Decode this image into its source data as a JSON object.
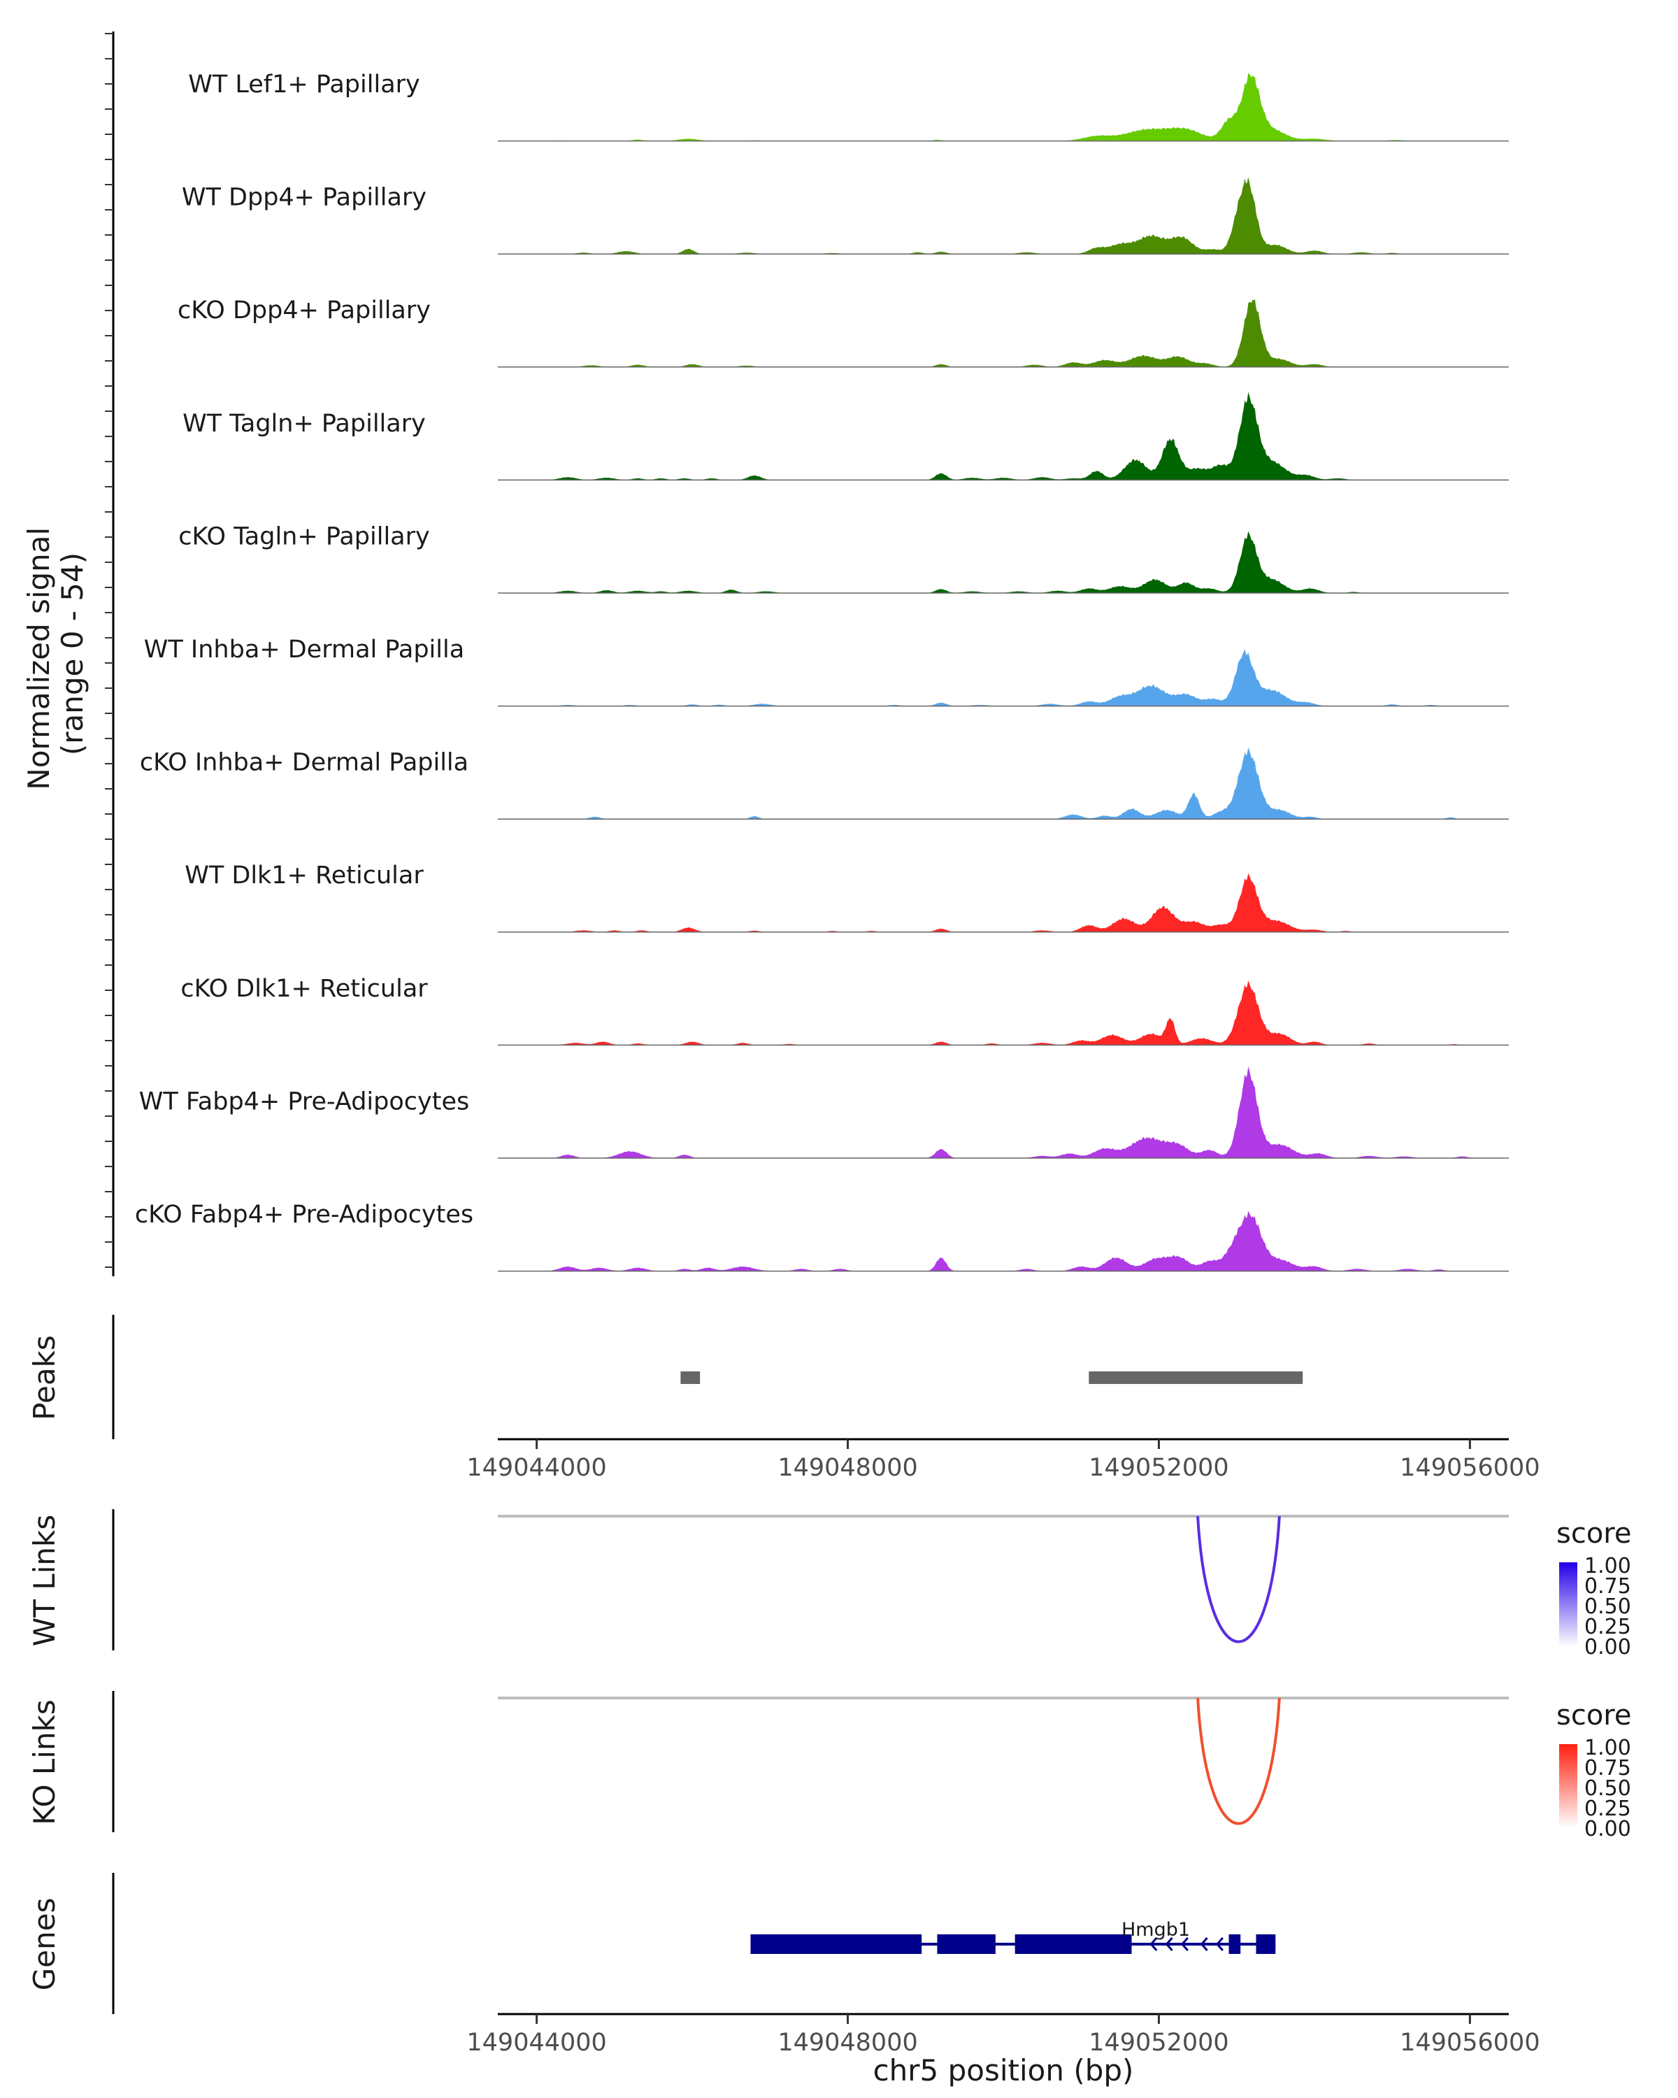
{
  "chart_data": {
    "type": "area",
    "region": "chr5",
    "xlim": [
      149043500,
      149056500
    ],
    "signal_ylabel": "Normalized signal",
    "signal_range": "(range 0 - 54)",
    "signal_ylim": [
      0,
      54
    ],
    "tracks": [
      {
        "name": "WT Lef1+ Papillary",
        "color": "#66cc00",
        "peaks": [
          [
            149044300,
            0.5,
            80
          ],
          [
            149045300,
            1.2,
            100
          ],
          [
            149045950,
            2.0,
            180
          ],
          [
            149046800,
            0.6,
            100
          ],
          [
            149049150,
            1.0,
            80
          ],
          [
            149051200,
            4.0,
            250
          ],
          [
            149051850,
            10.0,
            400
          ],
          [
            149052350,
            9.0,
            300
          ],
          [
            149052900,
            17.0,
            140
          ],
          [
            149053180,
            56.0,
            160
          ],
          [
            149053450,
            10.0,
            250
          ],
          [
            149054000,
            2.0,
            200
          ],
          [
            149055050,
            0.8,
            150
          ],
          [
            149055800,
            0.4,
            100
          ]
        ]
      },
      {
        "name": "WT Dpp4+ Papillary",
        "color": "#4d8c00",
        "peaks": [
          [
            149044600,
            1.2,
            120
          ],
          [
            149045150,
            2.5,
            150
          ],
          [
            149045950,
            4.5,
            100
          ],
          [
            149046700,
            1.2,
            150
          ],
          [
            149047800,
            0.8,
            150
          ],
          [
            149048900,
            1.5,
            100
          ],
          [
            149049200,
            2.0,
            100
          ],
          [
            149050300,
            1.5,
            150
          ],
          [
            149051200,
            5.0,
            150
          ],
          [
            149051500,
            8.0,
            200
          ],
          [
            149051900,
            16.0,
            250
          ],
          [
            149052300,
            14.0,
            200
          ],
          [
            149052700,
            4.0,
            150
          ],
          [
            149053000,
            20.0,
            120
          ],
          [
            149053150,
            60.0,
            140
          ],
          [
            149053500,
            8.0,
            200
          ],
          [
            149054000,
            3.0,
            150
          ],
          [
            149054600,
            1.5,
            150
          ],
          [
            149055000,
            1.0,
            100
          ]
        ]
      },
      {
        "name": "cKO Dpp4+ Papillary",
        "color": "#4d8c00",
        "peaks": [
          [
            149044700,
            1.5,
            150
          ],
          [
            149045300,
            2.0,
            120
          ],
          [
            149046000,
            2.5,
            120
          ],
          [
            149046700,
            1.2,
            150
          ],
          [
            149049200,
            2.5,
            100
          ],
          [
            149050400,
            2.0,
            150
          ],
          [
            149050900,
            4.0,
            150
          ],
          [
            149051300,
            6.0,
            200
          ],
          [
            149051800,
            10.0,
            250
          ],
          [
            149052250,
            9.0,
            200
          ],
          [
            149052600,
            3.0,
            150
          ],
          [
            149053200,
            60.0,
            150
          ],
          [
            149053550,
            7.0,
            200
          ],
          [
            149054000,
            2.5,
            150
          ]
        ]
      },
      {
        "name": "WT Tagln+ Papillary",
        "color": "#006400",
        "peaks": [
          [
            149044400,
            2.5,
            150
          ],
          [
            149044900,
            2.0,
            150
          ],
          [
            149045300,
            1.5,
            100
          ],
          [
            149045600,
            1.5,
            100
          ],
          [
            149045900,
            1.5,
            100
          ],
          [
            149046250,
            1.5,
            100
          ],
          [
            149046800,
            4.0,
            120
          ],
          [
            149049200,
            6.0,
            100
          ],
          [
            149049600,
            2.0,
            150
          ],
          [
            149050000,
            2.0,
            150
          ],
          [
            149050500,
            2.5,
            150
          ],
          [
            149050900,
            1.5,
            150
          ],
          [
            149051200,
            8.0,
            120
          ],
          [
            149051700,
            18.0,
            200
          ],
          [
            149052150,
            36.0,
            150
          ],
          [
            149052500,
            10.0,
            200
          ],
          [
            149052800,
            12.0,
            150
          ],
          [
            149053150,
            70.0,
            160
          ],
          [
            149053450,
            16.0,
            250
          ],
          [
            149053900,
            4.0,
            150
          ],
          [
            149054300,
            1.5,
            150
          ]
        ]
      },
      {
        "name": "cKO Tagln+ Papillary",
        "color": "#006400",
        "peaks": [
          [
            149044400,
            2.0,
            150
          ],
          [
            149044900,
            2.5,
            120
          ],
          [
            149045300,
            2.0,
            150
          ],
          [
            149045600,
            1.5,
            100
          ],
          [
            149045950,
            2.0,
            150
          ],
          [
            149046500,
            3.0,
            100
          ],
          [
            149046950,
            1.5,
            150
          ],
          [
            149049200,
            3.5,
            100
          ],
          [
            149049600,
            1.5,
            150
          ],
          [
            149050200,
            1.5,
            150
          ],
          [
            149050700,
            2.0,
            150
          ],
          [
            149051100,
            4.0,
            150
          ],
          [
            149051500,
            6.0,
            200
          ],
          [
            149051950,
            12.0,
            200
          ],
          [
            149052350,
            9.0,
            150
          ],
          [
            149052650,
            4.0,
            150
          ],
          [
            149053150,
            50.0,
            150
          ],
          [
            149053450,
            12.0,
            220
          ],
          [
            149053950,
            4.0,
            150
          ],
          [
            149054500,
            1.0,
            100
          ]
        ]
      },
      {
        "name": "WT Inhba+ Dermal Papilla",
        "color": "#56a5ec",
        "peaks": [
          [
            149044400,
            1.0,
            120
          ],
          [
            149045200,
            1.0,
            100
          ],
          [
            149046000,
            1.5,
            100
          ],
          [
            149046350,
            1.2,
            100
          ],
          [
            149046900,
            2.0,
            150
          ],
          [
            149048600,
            1.0,
            100
          ],
          [
            149049200,
            3.0,
            100
          ],
          [
            149049700,
            1.0,
            150
          ],
          [
            149050600,
            2.0,
            150
          ],
          [
            149051100,
            4.0,
            150
          ],
          [
            149051500,
            8.0,
            200
          ],
          [
            149051900,
            18.0,
            250
          ],
          [
            149052350,
            10.0,
            200
          ],
          [
            149052700,
            6.0,
            150
          ],
          [
            149053100,
            46.0,
            160
          ],
          [
            149053450,
            14.0,
            250
          ],
          [
            149053900,
            3.0,
            150
          ],
          [
            149055000,
            1.5,
            100
          ],
          [
            149055500,
            1.0,
            100
          ]
        ]
      },
      {
        "name": "cKO Inhba+ Dermal Papilla",
        "color": "#56a5ec",
        "peaks": [
          [
            149044750,
            2.0,
            100
          ],
          [
            149046800,
            2.5,
            80
          ],
          [
            149050900,
            4.0,
            150
          ],
          [
            149051300,
            3.0,
            120
          ],
          [
            149051650,
            9.0,
            150
          ],
          [
            149052100,
            8.0,
            200
          ],
          [
            149052450,
            22.0,
            100
          ],
          [
            149052800,
            6.0,
            150
          ],
          [
            149053150,
            60.0,
            180
          ],
          [
            149053550,
            8.0,
            200
          ],
          [
            149053950,
            2.0,
            120
          ],
          [
            149055750,
            1.5,
            80
          ]
        ]
      },
      {
        "name": "WT Dlk1+ Reticular",
        "color": "#ff2626",
        "peaks": [
          [
            149044600,
            1.5,
            150
          ],
          [
            149045000,
            1.5,
            100
          ],
          [
            149045350,
            1.5,
            100
          ],
          [
            149045950,
            4.0,
            120
          ],
          [
            149046800,
            1.2,
            100
          ],
          [
            149047800,
            1.0,
            100
          ],
          [
            149048300,
            1.0,
            100
          ],
          [
            149049200,
            3.0,
            100
          ],
          [
            149050500,
            1.5,
            150
          ],
          [
            149051100,
            6.0,
            150
          ],
          [
            149051550,
            12.0,
            200
          ],
          [
            149052050,
            22.0,
            200
          ],
          [
            149052450,
            9.0,
            200
          ],
          [
            149052800,
            6.0,
            150
          ],
          [
            149053150,
            48.0,
            160
          ],
          [
            149053500,
            10.0,
            250
          ],
          [
            149054000,
            2.0,
            150
          ],
          [
            149054400,
            1.0,
            100
          ]
        ]
      },
      {
        "name": "cKO Dlk1+ Reticular",
        "color": "#ff2626",
        "peaks": [
          [
            149044500,
            2.0,
            150
          ],
          [
            149044850,
            3.0,
            120
          ],
          [
            149045300,
            1.5,
            100
          ],
          [
            149046000,
            3.0,
            120
          ],
          [
            149046650,
            2.0,
            100
          ],
          [
            149047250,
            1.0,
            100
          ],
          [
            149049200,
            3.0,
            100
          ],
          [
            149049850,
            1.5,
            100
          ],
          [
            149050500,
            2.0,
            150
          ],
          [
            149051000,
            4.0,
            150
          ],
          [
            149051400,
            9.0,
            200
          ],
          [
            149051900,
            10.0,
            200
          ],
          [
            149052150,
            22.0,
            80
          ],
          [
            149052550,
            6.0,
            200
          ],
          [
            149053150,
            54.0,
            180
          ],
          [
            149053550,
            10.0,
            200
          ],
          [
            149054000,
            3.0,
            120
          ],
          [
            149054700,
            1.5,
            100
          ],
          [
            149055800,
            0.8,
            80
          ]
        ]
      },
      {
        "name": "WT Fabp4+ Pre-Adipocytes",
        "color": "#b03ae6",
        "peaks": [
          [
            149044400,
            3.0,
            120
          ],
          [
            149045200,
            6.0,
            200
          ],
          [
            149045900,
            3.0,
            100
          ],
          [
            149049200,
            8.0,
            100
          ],
          [
            149050500,
            2.0,
            150
          ],
          [
            149050850,
            4.0,
            150
          ],
          [
            149051300,
            8.0,
            200
          ],
          [
            149051850,
            18.0,
            300
          ],
          [
            149052250,
            10.0,
            200
          ],
          [
            149052650,
            7.0,
            150
          ],
          [
            149053150,
            76.0,
            160
          ],
          [
            149053550,
            12.0,
            250
          ],
          [
            149054050,
            4.0,
            150
          ],
          [
            149054700,
            2.0,
            150
          ],
          [
            149055150,
            1.5,
            150
          ],
          [
            149055900,
            1.5,
            100
          ]
        ]
      },
      {
        "name": "cKO Fabp4+ Pre-Adipocytes",
        "color": "#b03ae6",
        "peaks": [
          [
            149044400,
            4.0,
            150
          ],
          [
            149044800,
            3.0,
            150
          ],
          [
            149045300,
            3.0,
            150
          ],
          [
            149045900,
            2.0,
            100
          ],
          [
            149046200,
            3.0,
            120
          ],
          [
            149046650,
            4.0,
            200
          ],
          [
            149047400,
            2.0,
            120
          ],
          [
            149047900,
            2.0,
            120
          ],
          [
            149049200,
            12.0,
            90
          ],
          [
            149050300,
            2.0,
            120
          ],
          [
            149051000,
            4.0,
            150
          ],
          [
            149051450,
            12.0,
            200
          ],
          [
            149051950,
            10.0,
            200
          ],
          [
            149052250,
            12.0,
            200
          ],
          [
            149052650,
            8.0,
            150
          ],
          [
            149053000,
            22.0,
            200
          ],
          [
            149053200,
            40.0,
            180
          ],
          [
            149053550,
            10.0,
            250
          ],
          [
            149054000,
            4.0,
            150
          ],
          [
            149054550,
            2.0,
            150
          ],
          [
            149055200,
            2.0,
            150
          ],
          [
            149055600,
            1.5,
            100
          ]
        ]
      }
    ],
    "peaks_track": {
      "label": "Peaks",
      "color": "#666666",
      "regions": [
        [
          149045850,
          149046100
        ],
        [
          149051100,
          149053850
        ]
      ]
    },
    "axis_ticks": [
      149044000,
      149048000,
      149052000,
      149056000
    ],
    "axis_tick_labels": [
      "149044000",
      "149048000",
      "149052000",
      "149056000"
    ],
    "links": [
      {
        "label": "WT Links",
        "start": 149052500,
        "end": 149053550,
        "score": 0.78,
        "color": "#5a2ee0",
        "legend": {
          "title": "score",
          "ticks": [
            "1.00",
            "0.75",
            "0.50",
            "0.25",
            "0.00"
          ],
          "color_high": "#2200e6",
          "color_low": "#ffffff"
        }
      },
      {
        "label": "KO Links",
        "start": 149052500,
        "end": 149053550,
        "score": 0.78,
        "color": "#f05030",
        "legend": {
          "title": "score",
          "ticks": [
            "1.00",
            "0.75",
            "0.50",
            "0.25",
            "0.00"
          ],
          "color_high": "#ff2010",
          "color_low": "#ffffff"
        }
      }
    ],
    "genes": {
      "label": "Genes",
      "color": "#00008b",
      "name": "Hmgb1",
      "start": 149046750,
      "end": 149053500,
      "strand": "-",
      "exons": [
        [
          149046750,
          149048950
        ],
        [
          149049150,
          149049900
        ],
        [
          149050150,
          149051650
        ],
        [
          149052900,
          149053050
        ],
        [
          149053250,
          149053500
        ]
      ],
      "arrows": [
        149051900,
        149052100,
        149052300,
        149052550,
        149052750
      ]
    },
    "xlabel": "chr5 position (bp)"
  }
}
